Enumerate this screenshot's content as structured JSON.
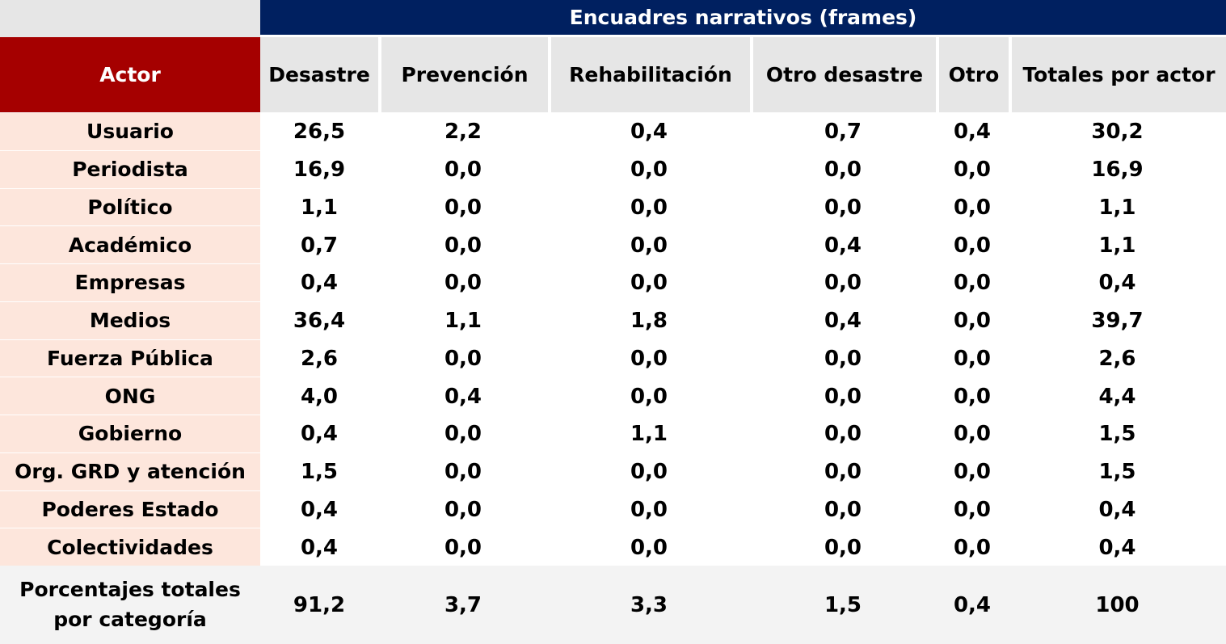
{
  "table": {
    "frames_title": "Encuadres narrativos (frames)",
    "actor_header": "Actor",
    "columns": [
      "Desastre",
      "Prevención",
      "Rehabilitación",
      "Otro desastre",
      "Otro",
      "Totales por actor"
    ],
    "rows": [
      {
        "actor": "Usuario",
        "values": [
          "26,5",
          "2,2",
          "0,4",
          "0,7",
          "0,4",
          "30,2"
        ]
      },
      {
        "actor": "Periodista",
        "values": [
          "16,9",
          "0,0",
          "0,0",
          "0,0",
          "0,0",
          "16,9"
        ]
      },
      {
        "actor": "Político",
        "values": [
          "1,1",
          "0,0",
          "0,0",
          "0,0",
          "0,0",
          "1,1"
        ]
      },
      {
        "actor": "Académico",
        "values": [
          "0,7",
          "0,0",
          "0,0",
          "0,4",
          "0,0",
          "1,1"
        ]
      },
      {
        "actor": "Empresas",
        "values": [
          "0,4",
          "0,0",
          "0,0",
          "0,0",
          "0,0",
          "0,4"
        ]
      },
      {
        "actor": "Medios",
        "values": [
          "36,4",
          "1,1",
          "1,8",
          "0,4",
          "0,0",
          "39,7"
        ]
      },
      {
        "actor": "Fuerza Pública",
        "values": [
          "2,6",
          "0,0",
          "0,0",
          "0,0",
          "0,0",
          "2,6"
        ]
      },
      {
        "actor": "ONG",
        "values": [
          "4,0",
          "0,4",
          "0,0",
          "0,0",
          "0,0",
          "4,4"
        ]
      },
      {
        "actor": "Gobierno",
        "values": [
          "0,4",
          "0,0",
          "1,1",
          "0,0",
          "0,0",
          "1,5"
        ]
      },
      {
        "actor": "Org. GRD y atención",
        "values": [
          "1,5",
          "0,0",
          "0,0",
          "0,0",
          "0,0",
          "1,5"
        ]
      },
      {
        "actor": "Poderes Estado",
        "values": [
          "0,4",
          "0,0",
          "0,0",
          "0,0",
          "0,0",
          "0,4"
        ]
      },
      {
        "actor": "Colectividades",
        "values": [
          "0,4",
          "0,0",
          "0,0",
          "0,0",
          "0,0",
          "0,4"
        ]
      }
    ],
    "footer": {
      "label_line1": "Porcentajes totales",
      "label_line2": "por categoría",
      "values": [
        "91,2",
        "3,7",
        "3,3",
        "1,5",
        "0,4",
        "100"
      ]
    }
  },
  "colors": {
    "frames_header_bg": "#002060",
    "actor_header_bg": "#a50000",
    "actor_cell_bg": "#fde6dc",
    "column_header_bg": "#e6e6e6",
    "footer_bg": "#f3f3f3"
  }
}
